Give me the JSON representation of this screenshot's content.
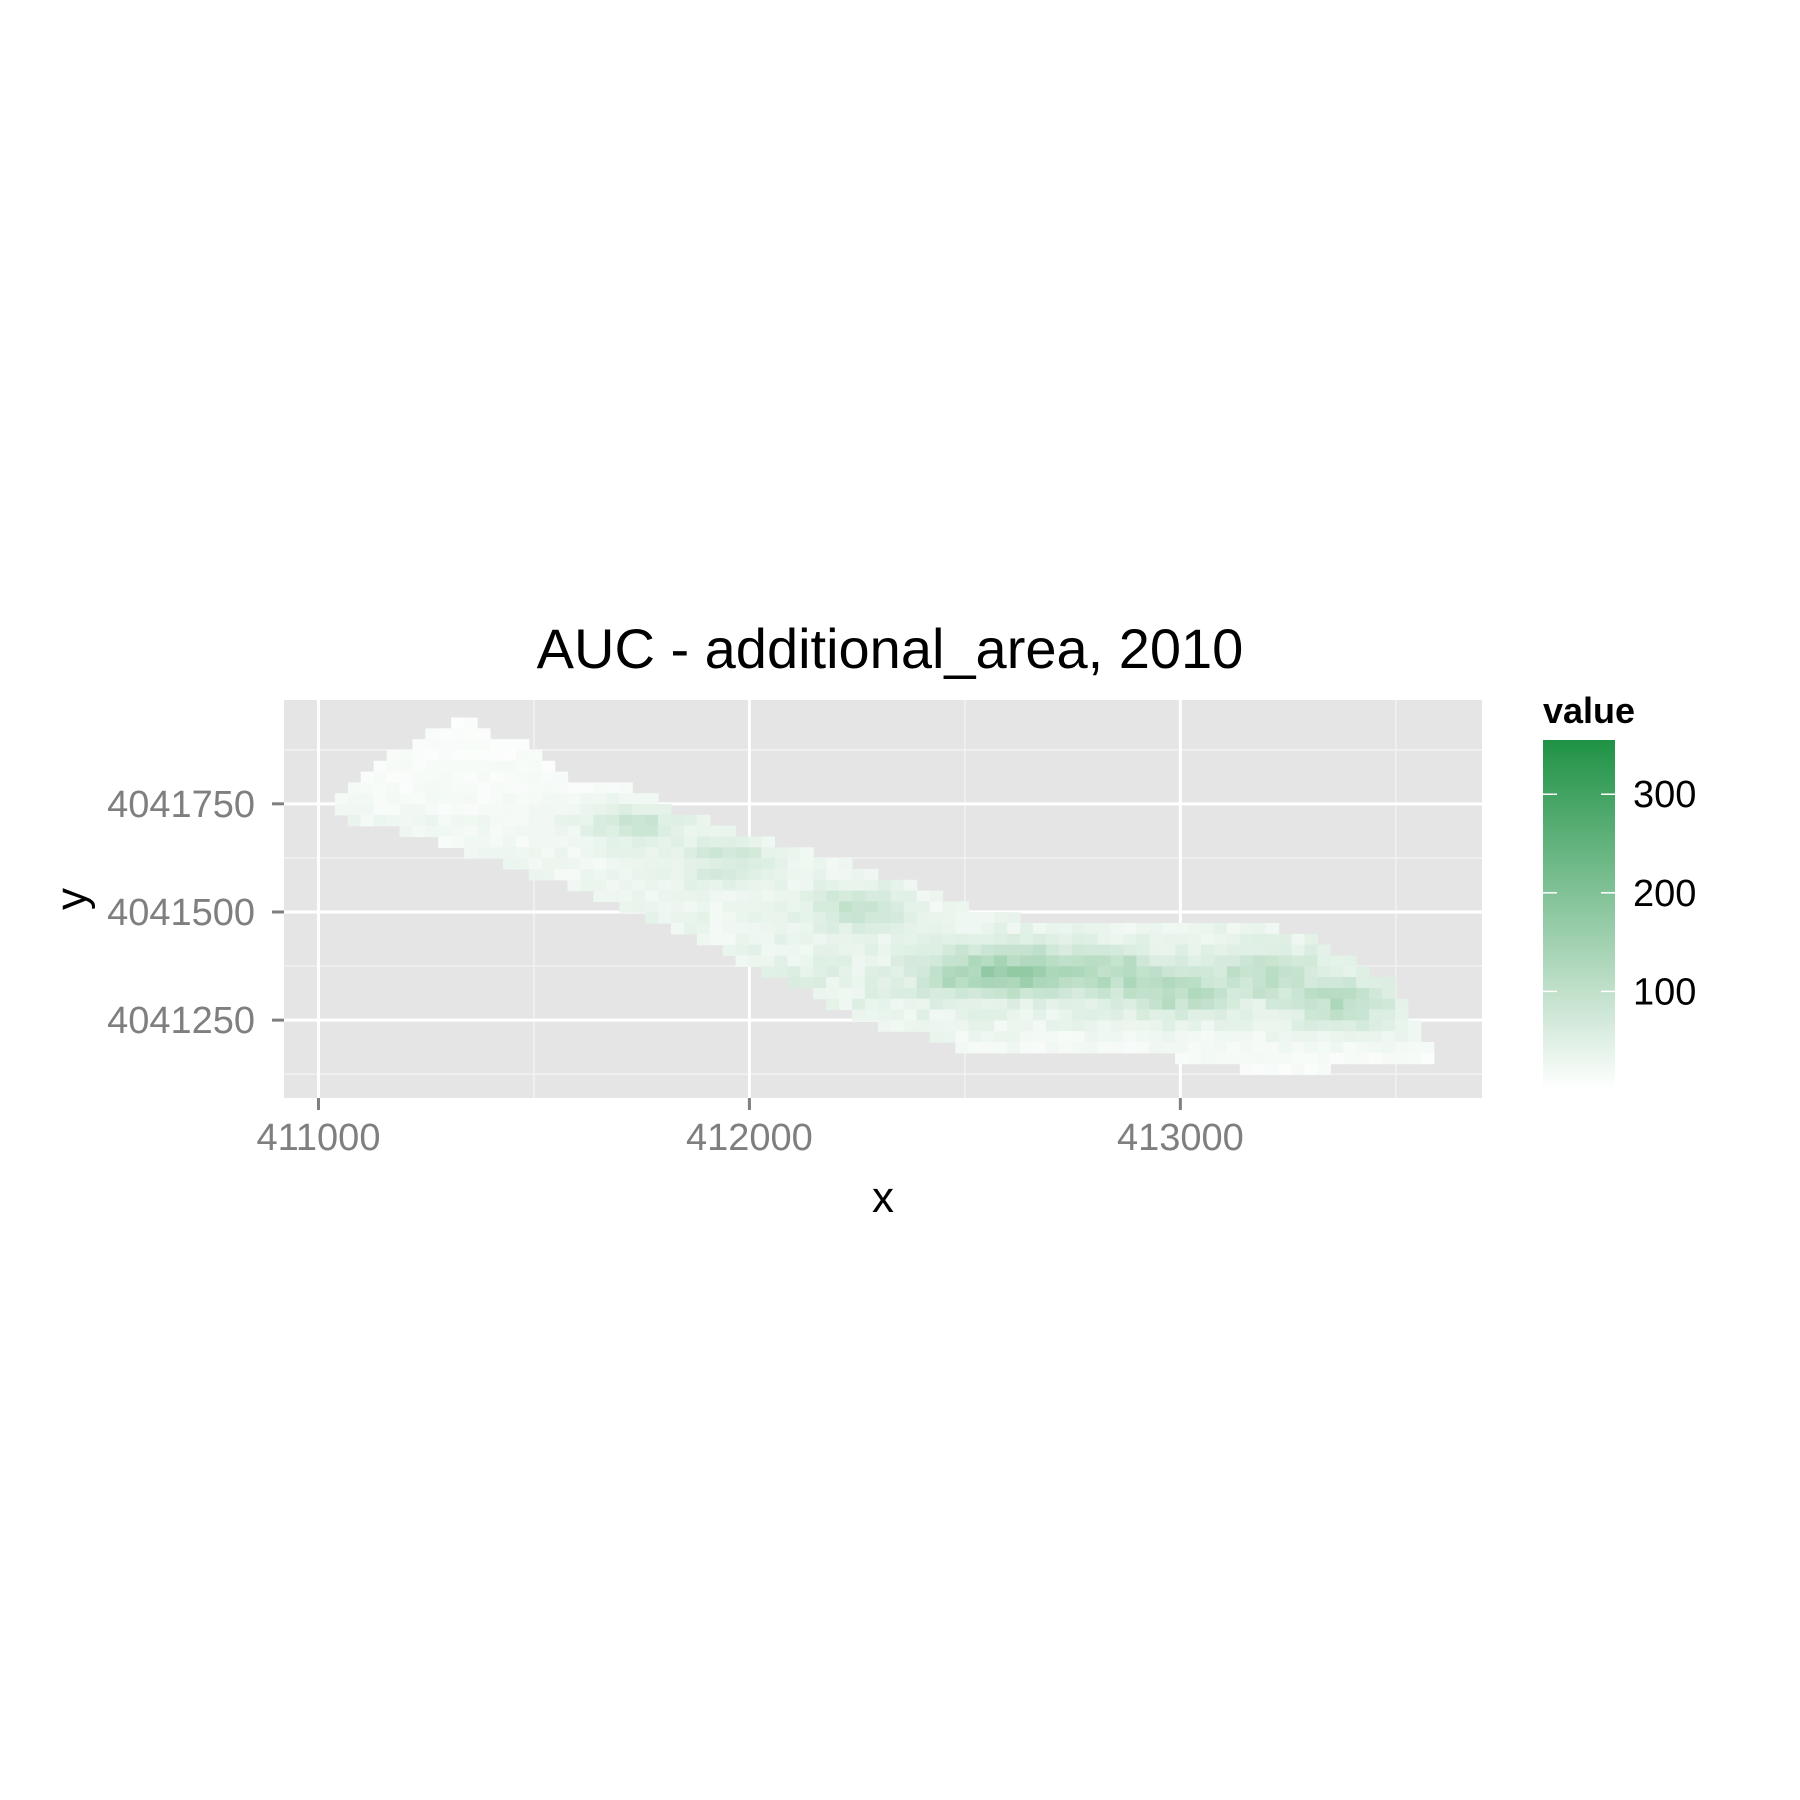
{
  "chart_data": {
    "type": "heatmap",
    "title": "AUC - additional_area, 2010",
    "xlabel": "x",
    "ylabel": "y",
    "xlim": [
      410920,
      413700
    ],
    "ylim": [
      4041070,
      4041990
    ],
    "x_ticks": [
      411000,
      412000,
      413000
    ],
    "x_tick_labels": [
      "411000",
      "412000",
      "413000"
    ],
    "y_ticks": [
      4041250,
      4041500,
      4041750
    ],
    "y_tick_labels": [
      "4041250",
      "4041500",
      "4041750"
    ],
    "grid": true,
    "legend": {
      "title": "value",
      "position": "right",
      "range": [
        0,
        355
      ],
      "low_color": "#ffffff",
      "high_color": "#1f9245",
      "ticks": [
        100,
        200,
        300
      ],
      "tick_labels": [
        "100",
        "200",
        "300"
      ]
    },
    "cell_size": [
      30,
      25
    ],
    "rows": [
      {
        "y": 4041937,
        "x0": 411308,
        "x1": 411368,
        "base": 8
      },
      {
        "y": 4041912,
        "x0": 411248,
        "x1": 411398,
        "base": 8
      },
      {
        "y": 4041887,
        "x0": 411218,
        "x1": 411488,
        "base": 10
      },
      {
        "y": 4041862,
        "x0": 411158,
        "x1": 411518,
        "base": 10
      },
      {
        "y": 4041837,
        "x0": 411128,
        "x1": 411548,
        "base": 12
      },
      {
        "y": 4041812,
        "x0": 411098,
        "x1": 411578,
        "base": 12
      },
      {
        "y": 4041787,
        "x0": 411068,
        "x1": 411728,
        "base": 14
      },
      {
        "y": 4041762,
        "x0": 411038,
        "x1": 411788,
        "base": 16
      },
      {
        "y": 4041737,
        "x0": 411038,
        "x1": 411818,
        "base": 18
      },
      {
        "y": 4041712,
        "x0": 411068,
        "x1": 411908,
        "base": 26
      },
      {
        "y": 4041687,
        "x0": 411188,
        "x1": 411968,
        "base": 22
      },
      {
        "y": 4041662,
        "x0": 411278,
        "x1": 412058,
        "base": 20
      },
      {
        "y": 4041637,
        "x0": 411338,
        "x1": 412148,
        "base": 24
      },
      {
        "y": 4041612,
        "x0": 411428,
        "x1": 412238,
        "base": 24
      },
      {
        "y": 4041587,
        "x0": 411488,
        "x1": 412298,
        "base": 26
      },
      {
        "y": 4041562,
        "x0": 411578,
        "x1": 412388,
        "base": 28
      },
      {
        "y": 4041537,
        "x0": 411638,
        "x1": 412448,
        "base": 28
      },
      {
        "y": 4041512,
        "x0": 411698,
        "x1": 412508,
        "base": 30
      },
      {
        "y": 4041487,
        "x0": 411758,
        "x1": 412628,
        "base": 32
      },
      {
        "y": 4041462,
        "x0": 411818,
        "x1": 413228,
        "base": 32
      },
      {
        "y": 4041437,
        "x0": 411878,
        "x1": 413318,
        "base": 34
      },
      {
        "y": 4041412,
        "x0": 411938,
        "x1": 413348,
        "base": 36
      },
      {
        "y": 4041387,
        "x0": 411968,
        "x1": 413408,
        "base": 40
      },
      {
        "y": 4041362,
        "x0": 412028,
        "x1": 413438,
        "base": 44
      },
      {
        "y": 4041337,
        "x0": 412088,
        "x1": 413498,
        "base": 46
      },
      {
        "y": 4041312,
        "x0": 412148,
        "x1": 413498,
        "base": 44
      },
      {
        "y": 4041287,
        "x0": 412178,
        "x1": 413528,
        "base": 40
      },
      {
        "y": 4041262,
        "x0": 412238,
        "x1": 413528,
        "base": 36
      },
      {
        "y": 4041237,
        "x0": 412298,
        "x1": 413558,
        "base": 32
      },
      {
        "y": 4041212,
        "x0": 412418,
        "x1": 413558,
        "base": 26
      },
      {
        "y": 4041187,
        "x0": 412478,
        "x1": 413588,
        "base": 20
      },
      {
        "y": 4041162,
        "x0": 412988,
        "x1": 413588,
        "base": 14
      },
      {
        "y": 4041137,
        "x0": 413138,
        "x1": 413348,
        "base": 12
      }
    ],
    "hotspots": [
      {
        "x": 411740,
        "y": 4041700,
        "value": 60
      },
      {
        "x": 411950,
        "y": 4041620,
        "value": 55
      },
      {
        "x": 412250,
        "y": 4041510,
        "value": 60
      },
      {
        "x": 412500,
        "y": 4041360,
        "value": 85
      },
      {
        "x": 412650,
        "y": 4041370,
        "value": 105
      },
      {
        "x": 412850,
        "y": 4041360,
        "value": 75
      },
      {
        "x": 413000,
        "y": 4041310,
        "value": 70
      },
      {
        "x": 413200,
        "y": 4041360,
        "value": 65
      },
      {
        "x": 413380,
        "y": 4041290,
        "value": 80
      }
    ]
  }
}
